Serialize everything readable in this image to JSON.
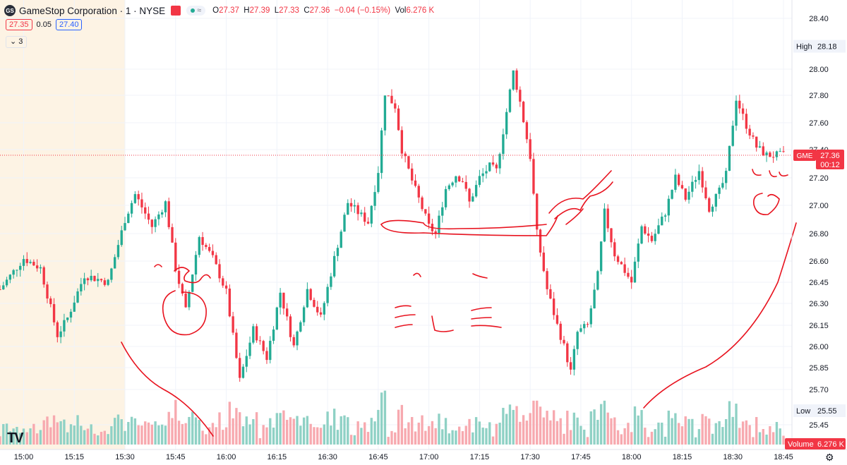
{
  "header": {
    "logo_text": "GS",
    "symbol": "GameStop Corporation · 1 · NYSE",
    "open_label": "O",
    "open": "27.37",
    "high_label": "H",
    "high": "27.39",
    "low_label": "L",
    "low": "27.33",
    "close_label": "C",
    "close": "27.36",
    "change": "−0.04 (−0.15%)",
    "vol_label": "Vol",
    "volume": "6.276 K",
    "pill_wave": "≈"
  },
  "quote": {
    "bid": "27.35",
    "spread": "0.05",
    "ask": "27.40"
  },
  "indicators_toggle": "⌄ 3",
  "price_scale": {
    "labels": [
      "28.40",
      "28.00",
      "27.80",
      "27.60",
      "27.40",
      "27.20",
      "27.00",
      "26.80",
      "26.60",
      "26.45",
      "26.30",
      "26.15",
      "26.00",
      "25.85",
      "25.70",
      "25.45"
    ],
    "high_label": "High",
    "high_value": "28.18",
    "low_label": "Low",
    "low_value": "25.55",
    "symbol_tag": "GME",
    "last_price": "27.36",
    "countdown": "00:12",
    "volume_label": "Volume",
    "volume_value": "6.276 K"
  },
  "time_scale": {
    "labels": [
      "15:00",
      "15:15",
      "15:30",
      "15:45",
      "16:00",
      "16:15",
      "16:30",
      "16:45",
      "17:00",
      "17:15",
      "17:30",
      "17:45",
      "18:00",
      "18:15",
      "18:30",
      "18:45"
    ]
  },
  "colors": {
    "up": "#22ab94",
    "down": "#f23645",
    "vol_up": "#8fd1c5",
    "vol_down": "#f7a9af",
    "session": "#fdf3e4",
    "annotation": "#e8131f"
  },
  "chart_data": {
    "type": "candlestick",
    "y_range": [
      25.4,
      28.4
    ],
    "x_start": "14:53",
    "x_end": "18:45",
    "last_price": 27.36,
    "session_high": 28.18,
    "session_low": 25.55,
    "anchors": [
      [
        "14:53",
        26.4
      ],
      [
        "15:00",
        26.62
      ],
      [
        "15:05",
        26.55
      ],
      [
        "15:10",
        26.08
      ],
      [
        "15:13",
        26.2
      ],
      [
        "15:18",
        26.5
      ],
      [
        "15:25",
        26.45
      ],
      [
        "15:30",
        26.9
      ],
      [
        "15:33",
        27.08
      ],
      [
        "15:38",
        26.85
      ],
      [
        "15:42",
        27.02
      ],
      [
        "15:45",
        26.55
      ],
      [
        "15:48",
        26.25
      ],
      [
        "15:52",
        26.78
      ],
      [
        "15:56",
        26.62
      ],
      [
        "16:00",
        26.38
      ],
      [
        "16:04",
        25.76
      ],
      [
        "16:08",
        26.12
      ],
      [
        "16:12",
        25.92
      ],
      [
        "16:16",
        26.38
      ],
      [
        "16:20",
        26.0
      ],
      [
        "16:24",
        26.4
      ],
      [
        "16:28",
        26.2
      ],
      [
        "16:32",
        26.62
      ],
      [
        "16:36",
        27.02
      ],
      [
        "16:39",
        26.95
      ],
      [
        "16:42",
        26.88
      ],
      [
        "16:45",
        27.25
      ],
      [
        "16:47",
        27.82
      ],
      [
        "16:50",
        27.72
      ],
      [
        "16:52",
        27.4
      ],
      [
        "16:55",
        27.18
      ],
      [
        "16:58",
        26.98
      ],
      [
        "17:00",
        26.85
      ],
      [
        "17:02",
        26.8
      ],
      [
        "17:05",
        27.12
      ],
      [
        "17:08",
        27.22
      ],
      [
        "17:10",
        27.18
      ],
      [
        "17:12",
        27.02
      ],
      [
        "17:15",
        27.2
      ],
      [
        "17:18",
        27.28
      ],
      [
        "17:20",
        27.25
      ],
      [
        "17:23",
        27.68
      ],
      [
        "17:25",
        27.98
      ],
      [
        "17:27",
        27.75
      ],
      [
        "17:30",
        27.35
      ],
      [
        "17:32",
        26.8
      ],
      [
        "17:35",
        26.4
      ],
      [
        "17:38",
        26.15
      ],
      [
        "17:40",
        26.0
      ],
      [
        "17:42",
        25.82
      ],
      [
        "17:44",
        26.1
      ],
      [
        "17:47",
        26.15
      ],
      [
        "17:50",
        26.5
      ],
      [
        "17:52",
        26.95
      ],
      [
        "17:55",
        26.65
      ],
      [
        "18:00",
        26.45
      ],
      [
        "18:03",
        26.85
      ],
      [
        "18:06",
        26.75
      ],
      [
        "18:10",
        26.95
      ],
      [
        "18:13",
        27.2
      ],
      [
        "18:16",
        27.05
      ],
      [
        "18:20",
        27.25
      ],
      [
        "18:23",
        26.98
      ],
      [
        "18:26",
        27.1
      ],
      [
        "18:28",
        27.22
      ],
      [
        "18:31",
        27.78
      ],
      [
        "18:34",
        27.58
      ],
      [
        "18:37",
        27.42
      ],
      [
        "18:40",
        27.36
      ]
    ],
    "volume_max": 180
  },
  "annotations_present": "hand-drawn red strokes"
}
